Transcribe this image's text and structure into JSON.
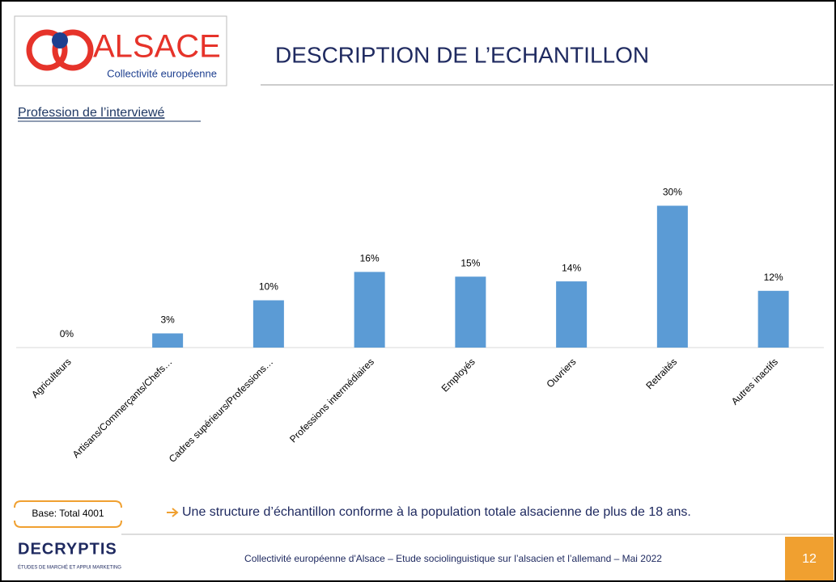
{
  "header": {
    "logo_name": "ALSACE",
    "logo_tagline": "Collectivité européenne",
    "title": "DESCRIPTION DE L’ECHANTILLON"
  },
  "section_label": "Profession de l’interviewé",
  "chart_data": {
    "type": "bar",
    "color": "#5b9bd5",
    "categories": [
      "Agriculteurs",
      "Artisans/Commerçants/Chefs…",
      "Cadres supérieurs/Professions…",
      "Professions intermédiaires",
      "Employés",
      "Ouvriers",
      "Retraités",
      "Autres inactifs"
    ],
    "values": [
      0,
      3,
      10,
      16,
      15,
      14,
      30,
      12
    ],
    "value_labels": [
      "0%",
      "3%",
      "10%",
      "16%",
      "15%",
      "14%",
      "30%",
      "12%"
    ]
  },
  "base": "Base: Total 4001",
  "conclusion": "Une structure d’échantillon conforme à la population totale alsacienne de plus de 18 ans.",
  "footer": {
    "brand": "DECRYPTIS",
    "brand_tagline": "ÉTUDES DE MARCHÉ ET APPUI MARKETING",
    "text": "Collectivité européenne d'Alsace – Etude sociolinguistique sur l’alsacien et l’allemand – Mai 2022",
    "page": "12"
  }
}
